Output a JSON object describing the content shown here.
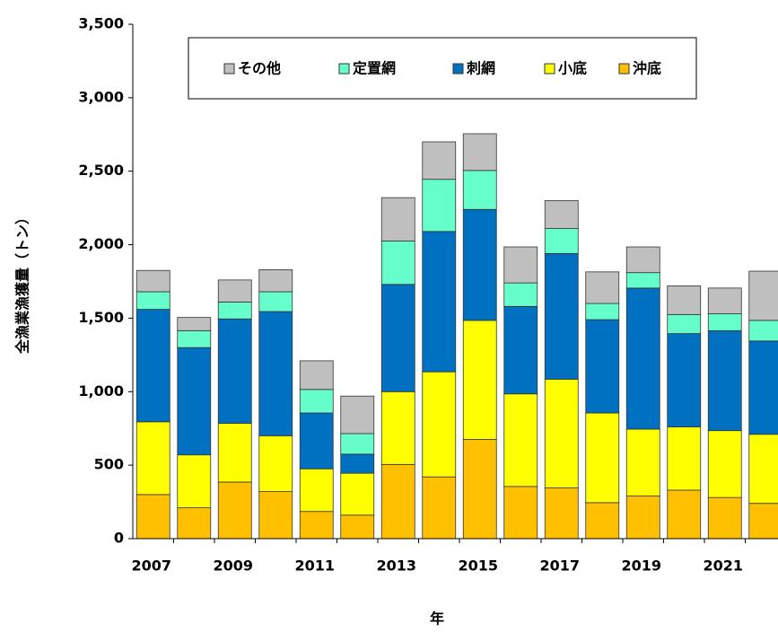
{
  "chart_data": {
    "type": "stacked-bar",
    "y_label": "全漁業漁獲量（トン）",
    "x_label": "年",
    "categories": [
      "2007",
      null,
      "2009",
      null,
      "2011",
      null,
      "2013",
      null,
      "2015",
      null,
      "2017",
      null,
      "2019",
      null,
      "2021",
      null
    ],
    "series": [
      {
        "name": "沖底",
        "color": "#FFC000",
        "values": [
          300,
          210,
          385,
          320,
          185,
          160,
          505,
          420,
          675,
          355,
          345,
          245,
          290,
          330,
          280,
          240
        ]
      },
      {
        "name": "小底",
        "color": "#FFFF00",
        "values": [
          495,
          360,
          400,
          380,
          290,
          285,
          495,
          715,
          810,
          630,
          740,
          610,
          455,
          430,
          455,
          470
        ]
      },
      {
        "name": "刺網",
        "color": "#0070C0",
        "values": [
          765,
          730,
          710,
          845,
          380,
          130,
          730,
          955,
          755,
          595,
          855,
          635,
          960,
          635,
          680,
          635
        ]
      },
      {
        "name": "定置網",
        "color": "#66FFCC",
        "values": [
          120,
          115,
          115,
          135,
          160,
          140,
          295,
          355,
          265,
          160,
          170,
          110,
          105,
          130,
          115,
          140
        ]
      },
      {
        "name": "その他",
        "color": "#BFBFBF",
        "values": [
          145,
          90,
          150,
          150,
          195,
          255,
          295,
          255,
          250,
          245,
          190,
          215,
          175,
          195,
          175,
          335
        ]
      }
    ],
    "ylim": [
      0,
      3500
    ],
    "yticks": [
      0,
      500,
      {
        "value": 1000,
        "label": "1,000"
      },
      {
        "value": 1500,
        "label": "1,500"
      },
      {
        "value": 2000,
        "label": "2,000"
      },
      {
        "value": 2500,
        "label": "2,500"
      },
      {
        "value": 3000,
        "label": "3,000"
      },
      {
        "value": 3500,
        "label": "3,500"
      }
    ],
    "grid": false
  }
}
